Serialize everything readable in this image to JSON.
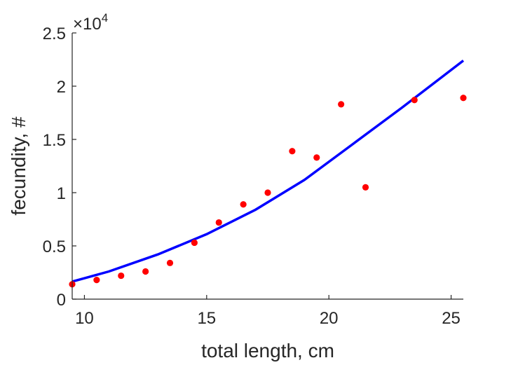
{
  "chart_data": {
    "type": "scatter",
    "title": "",
    "xlabel": "total length, cm",
    "ylabel": "fecundity, #",
    "xlim": [
      9.5,
      25.5
    ],
    "ylim": [
      0,
      25000
    ],
    "x_ticks": [
      10,
      15,
      20,
      25
    ],
    "y_ticks": [
      0,
      5000,
      10000,
      15000,
      20000,
      25000
    ],
    "y_tick_labels": [
      "0",
      "0.5",
      "1",
      "1.5",
      "2",
      "2.5"
    ],
    "y_exponent": {
      "multiplier": "×10",
      "power": "4"
    },
    "grid": false,
    "legend": "none",
    "series": [
      {
        "kind": "points",
        "color": "#ff0000",
        "marker": "filled-circle",
        "x": [
          9.5,
          10.5,
          11.5,
          12.5,
          13.5,
          14.5,
          15.5,
          16.5,
          17.5,
          18.5,
          19.5,
          20.5,
          21.5,
          23.5,
          25.5
        ],
        "y": [
          1400,
          1800,
          2200,
          2600,
          3400,
          5300,
          7200,
          8900,
          10000,
          13900,
          13300,
          18300,
          10500,
          18700,
          18900
        ]
      },
      {
        "kind": "fit-line",
        "color": "#0000ff",
        "x": [
          9.5,
          11,
          13,
          15,
          17,
          19,
          21,
          23,
          25.5
        ],
        "y": [
          1650,
          2600,
          4200,
          6100,
          8400,
          11200,
          14600,
          18000,
          22400
        ]
      }
    ]
  }
}
